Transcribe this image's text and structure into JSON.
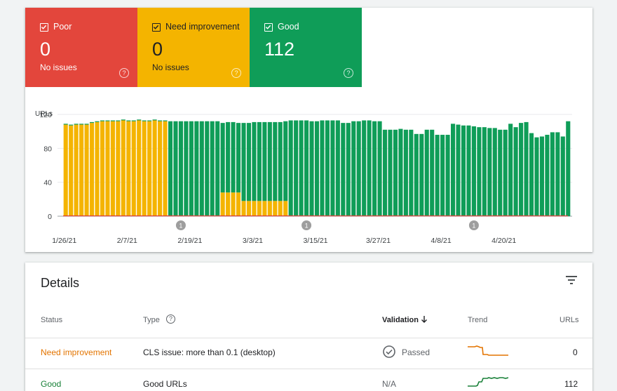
{
  "tiles": [
    {
      "key": "poor",
      "label": "Poor",
      "value": "0",
      "sub": "No issues",
      "color": "#e3463c",
      "text": "#ffffff",
      "help": "?"
    },
    {
      "key": "need",
      "label": "Need improvement",
      "value": "0",
      "sub": "No issues",
      "color": "#f4b400",
      "text": "#202124",
      "help": "?"
    },
    {
      "key": "good",
      "label": "Good",
      "value": "112",
      "sub": "",
      "color": "#0f9d58",
      "text": "#ffffff",
      "help": "?"
    }
  ],
  "chart_data": {
    "type": "bar",
    "stacked": true,
    "ylabel": "URLs",
    "yticks": [
      0,
      40,
      80,
      120
    ],
    "ylim": [
      0,
      125
    ],
    "xticks": [
      "1/26/21",
      "2/7/21",
      "2/19/21",
      "3/3/21",
      "3/15/21",
      "3/27/21",
      "4/8/21",
      "4/20/21"
    ],
    "xtick_index": [
      0,
      12,
      24,
      36,
      48,
      60,
      72,
      84
    ],
    "markers": [
      {
        "label": "1",
        "index": 22
      },
      {
        "label": "1",
        "index": 46
      },
      {
        "label": "1",
        "index": 78
      }
    ],
    "colors": {
      "good": "#0f9d58",
      "need": "#f4b400",
      "poor": "#e3463c"
    },
    "series": [
      {
        "name": "Need improvement",
        "values": [
          108,
          107,
          108,
          108,
          108,
          110,
          111,
          112,
          112,
          112,
          112,
          113,
          112,
          112,
          113,
          112,
          112,
          113,
          112,
          112,
          0,
          0,
          0,
          0,
          0,
          0,
          0,
          0,
          0,
          0,
          28,
          28,
          28,
          28,
          18,
          18,
          18,
          18,
          18,
          18,
          18,
          18,
          18,
          0,
          0,
          0,
          0,
          0,
          0,
          0,
          0,
          0,
          0,
          0,
          0,
          0,
          0,
          0,
          0,
          0,
          0,
          0,
          0,
          0,
          0,
          0,
          0,
          0,
          0,
          0,
          0,
          0,
          0,
          0,
          0,
          0,
          0,
          0,
          0,
          0,
          0,
          0,
          0,
          0,
          0,
          0,
          0,
          0,
          0,
          0,
          0,
          0,
          0,
          0
        ]
      },
      {
        "name": "Good",
        "values": [
          1,
          1,
          1,
          1,
          1,
          1,
          1,
          1,
          1,
          1,
          1,
          1,
          1,
          1,
          1,
          1,
          1,
          1,
          1,
          1,
          112,
          112,
          112,
          112,
          112,
          112,
          112,
          112,
          112,
          112,
          82,
          83,
          83,
          82,
          92,
          92,
          93,
          93,
          93,
          93,
          93,
          93,
          94,
          113,
          113,
          113,
          113,
          112,
          112,
          113,
          113,
          113,
          113,
          110,
          110,
          112,
          112,
          113,
          113,
          112,
          112,
          102,
          102,
          102,
          103,
          102,
          102,
          97,
          97,
          102,
          102,
          96,
          96,
          96,
          109,
          108,
          107,
          107,
          106,
          105,
          105,
          104,
          104,
          102,
          102,
          109,
          105,
          110,
          111,
          98,
          93,
          94,
          96,
          99,
          99,
          94,
          112
        ]
      },
      {
        "name": "Poor",
        "values": []
      }
    ]
  },
  "details": {
    "title": "Details",
    "columns": {
      "status": "Status",
      "type": "Type",
      "validation": "Validation",
      "trend": "Trend",
      "urls": "URLs"
    },
    "type_help": "?",
    "rows": [
      {
        "status": "Need improvement",
        "status_color": "#e37400",
        "type": "CLS issue: more than 0.1 (desktop)",
        "validation": "Passed",
        "trend_color": "#e37400",
        "urls": "0"
      },
      {
        "status": "Good",
        "status_color": "#188038",
        "type": "Good URLs",
        "validation": "N/A",
        "trend_color": "#188038",
        "urls": "112"
      }
    ]
  }
}
